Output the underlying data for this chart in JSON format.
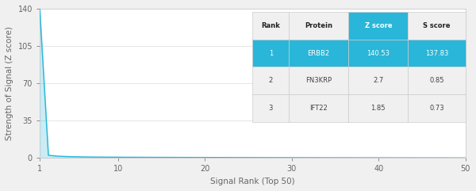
{
  "x_data": [
    1,
    2,
    3,
    4,
    5,
    6,
    7,
    8,
    9,
    10,
    11,
    12,
    13,
    14,
    15,
    16,
    17,
    18,
    19,
    20,
    21,
    22,
    23,
    24,
    25,
    26,
    27,
    28,
    29,
    30,
    31,
    32,
    33,
    34,
    35,
    36,
    37,
    38,
    39,
    40,
    41,
    42,
    43,
    44,
    45,
    46,
    47,
    48,
    49,
    50
  ],
  "y_data": [
    140.53,
    2.7,
    1.85,
    1.5,
    1.3,
    1.1,
    1.0,
    0.95,
    0.9,
    0.85,
    0.8,
    0.78,
    0.75,
    0.72,
    0.7,
    0.68,
    0.65,
    0.63,
    0.61,
    0.59,
    0.57,
    0.55,
    0.53,
    0.51,
    0.5,
    0.48,
    0.46,
    0.44,
    0.43,
    0.41,
    0.4,
    0.38,
    0.37,
    0.35,
    0.34,
    0.33,
    0.32,
    0.31,
    0.3,
    0.29,
    0.28,
    0.27,
    0.26,
    0.25,
    0.24,
    0.23,
    0.22,
    0.21,
    0.2,
    0.19
  ],
  "line_color": "#29b6d8",
  "background_color": "#f0f0f0",
  "plot_bg_color": "#ffffff",
  "xlabel": "Signal Rank (Top 50)",
  "ylabel": "Strength of Signal (Z score)",
  "xlim": [
    1,
    50
  ],
  "ylim": [
    0,
    140
  ],
  "yticks": [
    0,
    35,
    70,
    105,
    140
  ],
  "xticks": [
    1,
    10,
    20,
    30,
    40,
    50
  ],
  "table_headers": [
    "Rank",
    "Protein",
    "Z score",
    "S score"
  ],
  "table_data": [
    [
      "1",
      "ERBB2",
      "140.53",
      "137.83"
    ],
    [
      "2",
      "FN3KRP",
      "2.7",
      "0.85"
    ],
    [
      "3",
      "IFT22",
      "1.85",
      "0.73"
    ]
  ],
  "table_header_bg": "#f0f0f0",
  "table_row1_bg": "#29b6d8",
  "table_row_other_bg": "#f0f0f0",
  "table_row1_text": "#ffffff",
  "table_header_text": "#222222",
  "table_other_text": "#444444",
  "z_score_header_bg": "#29b6d8",
  "z_score_header_text": "#ffffff",
  "grid_color": "#e0e0e0",
  "tick_label_color": "#666666",
  "spine_color": "#cccccc"
}
